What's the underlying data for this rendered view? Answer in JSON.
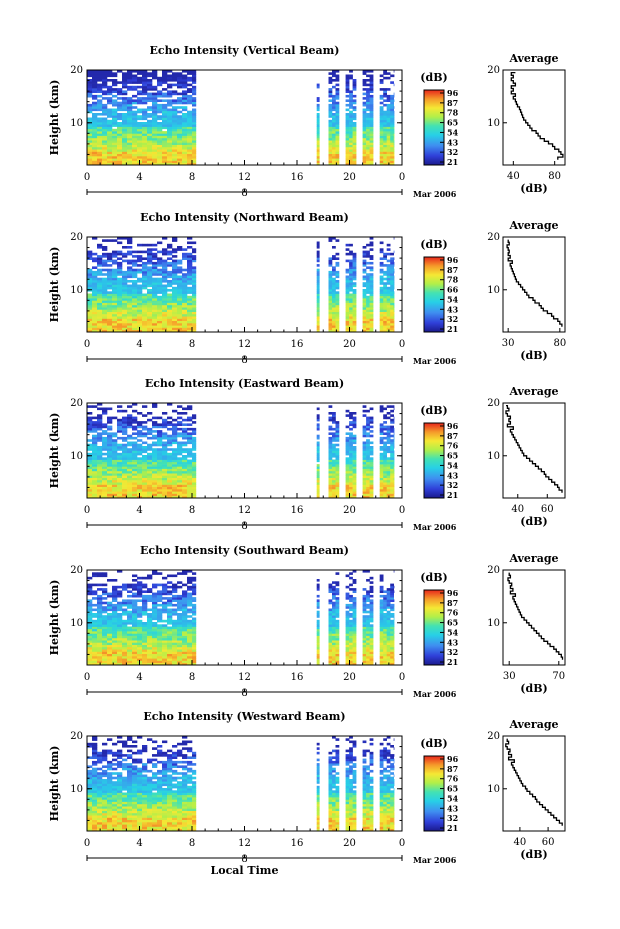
{
  "chart_data": [
    {
      "type": "heatmap",
      "title": "Echo Intensity (Vertical Beam)",
      "ylabel": "Height (km)",
      "ylim": [
        2,
        20
      ],
      "yticks": [
        10,
        20
      ],
      "xticks": [
        "0",
        "4",
        "8",
        "12",
        "16",
        "20",
        "0"
      ],
      "xlim": [
        0,
        24
      ],
      "date_day": "8",
      "date_label": "Mar 2006",
      "data_segments": [
        [
          0,
          8.3
        ],
        [
          17.5,
          17.7
        ],
        [
          18.4,
          19.2
        ],
        [
          19.7,
          20.5
        ],
        [
          21.0,
          21.8
        ],
        [
          22.3,
          23.4
        ]
      ],
      "colorbar": {
        "unit": "(dB)",
        "ticks": [
          "96",
          "87",
          "78",
          "65",
          "54",
          "43",
          "32",
          "21"
        ]
      },
      "average": {
        "title": "Average",
        "xlabel": "(dB)",
        "xticks": [
          "40",
          "80"
        ],
        "xlim": [
          30,
          90
        ],
        "yticks": [
          10,
          20
        ],
        "height": [
          3,
          3.5,
          4,
          4.5,
          5,
          5.5,
          6,
          6.5,
          7,
          7.5,
          8,
          8.5,
          9,
          9.5,
          10,
          10.5,
          11,
          11.5,
          12,
          12.5,
          13,
          13.5,
          14,
          14.5,
          15,
          15.5,
          16,
          16.5,
          17,
          17.5,
          18,
          18.5,
          19,
          19.5
        ],
        "db": [
          83,
          88,
          86,
          84,
          80,
          78,
          74,
          70,
          66,
          64,
          62,
          58,
          56,
          54,
          52,
          50,
          49,
          48,
          47,
          46,
          44,
          43,
          42,
          40,
          42,
          38,
          40,
          38,
          42,
          40,
          38,
          40,
          38,
          42
        ]
      }
    },
    {
      "type": "heatmap",
      "title": "Echo Intensity (Northward Beam)",
      "ylabel": "Height (km)",
      "ylim": [
        2,
        20
      ],
      "yticks": [
        10,
        20
      ],
      "xticks": [
        "0",
        "4",
        "8",
        "12",
        "16",
        "20",
        "0"
      ],
      "xlim": [
        0,
        24
      ],
      "date_day": "8",
      "date_label": "Mar 2006",
      "data_segments": [
        [
          0,
          8.3
        ],
        [
          17.5,
          17.7
        ],
        [
          18.4,
          19.2
        ],
        [
          19.7,
          20.5
        ],
        [
          21.0,
          21.8
        ],
        [
          22.3,
          23.4
        ]
      ],
      "colorbar": {
        "unit": "(dB)",
        "ticks": [
          "96",
          "87",
          "78",
          "66",
          "54",
          "43",
          "32",
          "21"
        ]
      },
      "average": {
        "title": "Average",
        "xlabel": "(dB)",
        "xticks": [
          "30",
          "80"
        ],
        "xlim": [
          25,
          85
        ],
        "yticks": [
          10,
          20
        ],
        "height": [
          3,
          3.5,
          4,
          4.5,
          5,
          5.5,
          6,
          6.5,
          7,
          7.5,
          8,
          8.5,
          9,
          9.5,
          10,
          10.5,
          11,
          11.5,
          12,
          12.5,
          13,
          13.5,
          14,
          14.5,
          15,
          15.5,
          16,
          16.5,
          17,
          17.5,
          18,
          18.5,
          19,
          19.5
        ],
        "db": [
          82,
          80,
          78,
          74,
          72,
          68,
          64,
          62,
          60,
          56,
          54,
          50,
          48,
          46,
          44,
          42,
          40,
          38,
          37,
          36,
          35,
          34,
          33,
          32,
          34,
          30,
          32,
          30,
          31,
          30,
          29,
          31,
          30,
          30
        ]
      }
    },
    {
      "type": "heatmap",
      "title": "Echo Intensity (Eastward Beam)",
      "ylabel": "Height (km)",
      "ylim": [
        2,
        20
      ],
      "yticks": [
        10,
        20
      ],
      "xticks": [
        "0",
        "4",
        "8",
        "12",
        "16",
        "20",
        "0"
      ],
      "xlim": [
        0,
        24
      ],
      "date_day": "8",
      "date_label": "Mar 2006",
      "data_segments": [
        [
          0,
          8.3
        ],
        [
          17.5,
          17.7
        ],
        [
          18.4,
          19.2
        ],
        [
          19.7,
          20.5
        ],
        [
          21.0,
          21.8
        ],
        [
          22.3,
          23.4
        ]
      ],
      "colorbar": {
        "unit": "(dB)",
        "ticks": [
          "96",
          "87",
          "76",
          "65",
          "54",
          "43",
          "32",
          "21"
        ]
      },
      "average": {
        "title": "Average",
        "xlabel": "(dB)",
        "xticks": [
          "40",
          "60"
        ],
        "xlim": [
          30,
          72
        ],
        "yticks": [
          10,
          20
        ],
        "height": [
          3,
          3.5,
          4,
          4.5,
          5,
          5.5,
          6,
          6.5,
          7,
          7.5,
          8,
          8.5,
          9,
          9.5,
          10,
          10.5,
          11,
          11.5,
          12,
          12.5,
          13,
          13.5,
          14,
          14.5,
          15,
          15.5,
          16,
          16.5,
          17,
          17.5,
          18,
          18.5,
          19,
          19.5
        ],
        "db": [
          70,
          68,
          67,
          65,
          63,
          61,
          59,
          58,
          56,
          54,
          52,
          50,
          48,
          46,
          44,
          43,
          42,
          41,
          40,
          39,
          38,
          37,
          36,
          35,
          37,
          33,
          35,
          34,
          35,
          33,
          32,
          34,
          33,
          32
        ]
      }
    },
    {
      "type": "heatmap",
      "title": "Echo Intensity (Southward Beam)",
      "ylabel": "Height (km)",
      "ylim": [
        2,
        20
      ],
      "yticks": [
        10,
        20
      ],
      "xticks": [
        "0",
        "4",
        "8",
        "12",
        "16",
        "20",
        "0"
      ],
      "xlim": [
        0,
        24
      ],
      "date_day": "8",
      "date_label": "Mar 2006",
      "data_segments": [
        [
          0,
          8.3
        ],
        [
          17.5,
          17.7
        ],
        [
          18.4,
          19.2
        ],
        [
          19.7,
          20.5
        ],
        [
          21.0,
          21.8
        ],
        [
          22.3,
          23.4
        ]
      ],
      "colorbar": {
        "unit": "(dB)",
        "ticks": [
          "96",
          "87",
          "76",
          "65",
          "54",
          "43",
          "32",
          "21"
        ]
      },
      "average": {
        "title": "Average",
        "xlabel": "(dB)",
        "xticks": [
          "30",
          "70"
        ],
        "xlim": [
          25,
          75
        ],
        "yticks": [
          10,
          20
        ],
        "height": [
          3,
          3.5,
          4,
          4.5,
          5,
          5.5,
          6,
          6.5,
          7,
          7.5,
          8,
          8.5,
          9,
          9.5,
          10,
          10.5,
          11,
          11.5,
          12,
          12.5,
          13,
          13.5,
          14,
          14.5,
          15,
          15.5,
          16,
          16.5,
          17,
          17.5,
          18,
          18.5,
          19,
          19.5
        ],
        "db": [
          73,
          72,
          70,
          68,
          66,
          63,
          61,
          58,
          56,
          54,
          52,
          50,
          48,
          46,
          44,
          42,
          40,
          39,
          38,
          37,
          36,
          35,
          34,
          33,
          35,
          31,
          33,
          31,
          32,
          30,
          29,
          31,
          30,
          30
        ]
      }
    },
    {
      "type": "heatmap",
      "title": "Echo Intensity (Westward Beam)",
      "ylabel": "Height (km)",
      "ylim": [
        2,
        20
      ],
      "yticks": [
        10,
        20
      ],
      "xticks": [
        "0",
        "4",
        "8",
        "12",
        "16",
        "20",
        "0"
      ],
      "xlim": [
        0,
        24
      ],
      "date_day": "8",
      "date_label": "Mar 2006",
      "xlabel": "Local Time",
      "data_segments": [
        [
          0,
          8.3
        ],
        [
          17.5,
          17.7
        ],
        [
          18.4,
          19.2
        ],
        [
          19.7,
          20.5
        ],
        [
          21.0,
          21.8
        ],
        [
          22.3,
          23.4
        ]
      ],
      "colorbar": {
        "unit": "(dB)",
        "ticks": [
          "96",
          "87",
          "76",
          "65",
          "54",
          "43",
          "32",
          "21"
        ]
      },
      "average": {
        "title": "Average",
        "xlabel": "(dB)",
        "xticks": [
          "40",
          "60"
        ],
        "xlim": [
          28,
          72
        ],
        "yticks": [
          10,
          20
        ],
        "height": [
          3,
          3.5,
          4,
          4.5,
          5,
          5.5,
          6,
          6.5,
          7,
          7.5,
          8,
          8.5,
          9,
          9.5,
          10,
          10.5,
          11,
          11.5,
          12,
          12.5,
          13,
          13.5,
          14,
          14.5,
          15,
          15.5,
          16,
          16.5,
          17,
          17.5,
          18,
          18.5,
          19,
          19.5
        ],
        "db": [
          70,
          68,
          66,
          64,
          62,
          60,
          58,
          56,
          54,
          52,
          51,
          49,
          47,
          45,
          44,
          42,
          41,
          40,
          39,
          38,
          37,
          36,
          35,
          34,
          36,
          32,
          34,
          32,
          33,
          31,
          30,
          32,
          31,
          31
        ]
      }
    }
  ]
}
